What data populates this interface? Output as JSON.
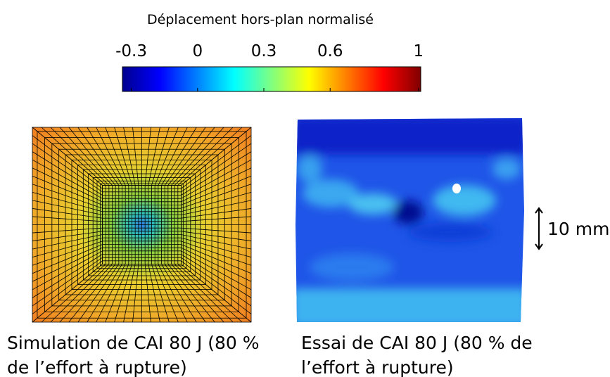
{
  "colorbar": {
    "title": "Déplacement hors-plan normalisé",
    "clim": [
      -0.34,
      1.01
    ],
    "ticks": [
      -0.3,
      0,
      0.3,
      0.6,
      1
    ]
  },
  "scale_bar": {
    "label": "10 mm"
  },
  "panels": [
    {
      "caption_lines": [
        "Simulation de CAI 80 J (80 %",
        "de l’effort à rupture)"
      ]
    },
    {
      "caption_lines": [
        "Essai de CAI 80 J (80 % de",
        "l’effort à rupture)"
      ]
    }
  ]
}
